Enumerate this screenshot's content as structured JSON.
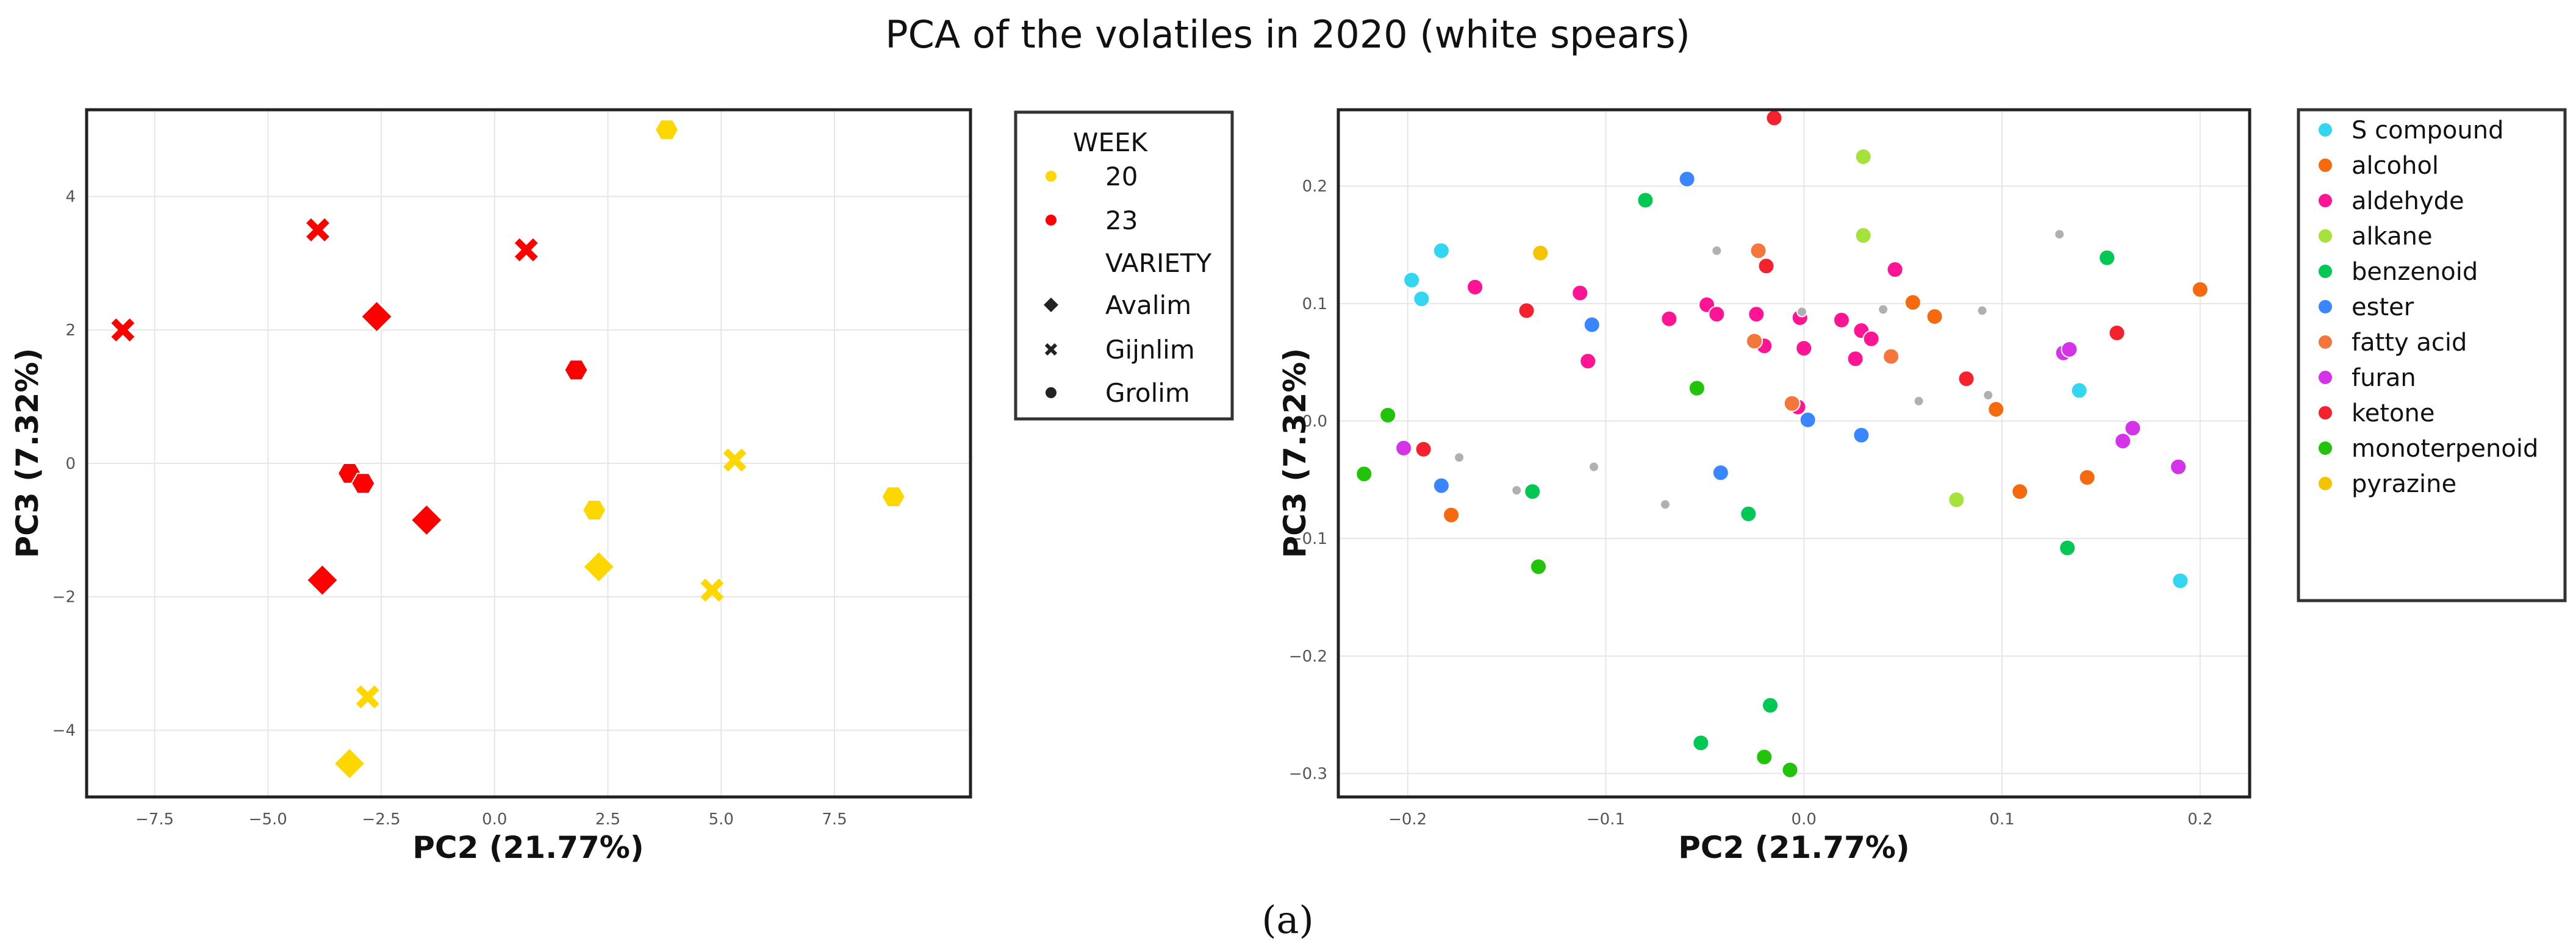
{
  "figure": {
    "title": "PCA of the volatiles in 2020 (white spears)",
    "caption": "(a)"
  },
  "colors": {
    "week_20": "#FFD700",
    "week_23": "#FF0000",
    "categories": {
      "S compound": "#32D6F0",
      "alcohol": "#F56A0F",
      "aldehyde": "#FF1493",
      "alkane": "#A6E23C",
      "benzenoid": "#00C853",
      "ester": "#3A86FF",
      "fatty acid": "#F5763B",
      "furan": "#D433E8",
      "ketone": "#F5222D",
      "monoterpenoid": "#22C40A",
      "pyrazine": "#F5C400",
      "unlabeled": "#B0B0B0"
    }
  },
  "chart_data": [
    {
      "type": "scatter",
      "name": "samples",
      "xlabel": "PC2 (21.77%)",
      "ylabel": "PC3 (7.32%)",
      "xlim": [
        -9,
        10.5
      ],
      "ylim": [
        -5,
        5.3
      ],
      "xticks": [
        -7.5,
        -5.0,
        -2.5,
        0.0,
        2.5,
        5.0,
        7.5
      ],
      "xtick_labels": [
        "−7.5",
        "−5.0",
        "−2.5",
        "0.0",
        "2.5",
        "5.0",
        "7.5"
      ],
      "yticks": [
        -4,
        -2,
        0,
        2,
        4
      ],
      "ytick_labels": [
        "−4",
        "−2",
        "0",
        "2",
        "4"
      ],
      "legend": {
        "position": "right-outside",
        "hue_title": "WEEK",
        "hue_entries": [
          {
            "label": "20",
            "key": "20"
          },
          {
            "label": "23",
            "key": "23"
          }
        ],
        "style_title": "VARIETY",
        "style_entries": [
          {
            "label": "Avalim",
            "marker": "diamond"
          },
          {
            "label": "Gijnlim",
            "marker": "x"
          },
          {
            "label": "Grolim",
            "marker": "hexagon"
          }
        ]
      },
      "points": [
        {
          "x": 3.8,
          "y": 5.0,
          "week": "20",
          "variety": "Grolim"
        },
        {
          "x": 8.8,
          "y": -0.5,
          "week": "20",
          "variety": "Grolim"
        },
        {
          "x": 2.2,
          "y": -0.7,
          "week": "20",
          "variety": "Grolim"
        },
        {
          "x": 5.3,
          "y": 0.05,
          "week": "20",
          "variety": "Gijnlim"
        },
        {
          "x": 4.8,
          "y": -1.9,
          "week": "20",
          "variety": "Gijnlim"
        },
        {
          "x": -2.8,
          "y": -3.5,
          "week": "20",
          "variety": "Gijnlim"
        },
        {
          "x": 2.3,
          "y": -1.55,
          "week": "20",
          "variety": "Avalim"
        },
        {
          "x": -3.2,
          "y": -4.5,
          "week": "20",
          "variety": "Avalim"
        },
        {
          "x": -8.2,
          "y": 2.0,
          "week": "23",
          "variety": "Gijnlim"
        },
        {
          "x": -3.9,
          "y": 3.5,
          "week": "23",
          "variety": "Gijnlim"
        },
        {
          "x": 0.7,
          "y": 3.2,
          "week": "23",
          "variety": "Gijnlim"
        },
        {
          "x": -2.6,
          "y": 2.2,
          "week": "23",
          "variety": "Avalim"
        },
        {
          "x": -1.5,
          "y": -0.85,
          "week": "23",
          "variety": "Avalim"
        },
        {
          "x": -3.8,
          "y": -1.75,
          "week": "23",
          "variety": "Avalim"
        },
        {
          "x": 1.8,
          "y": 1.4,
          "week": "23",
          "variety": "Grolim"
        },
        {
          "x": -3.2,
          "y": -0.15,
          "week": "23",
          "variety": "Grolim"
        },
        {
          "x": -2.9,
          "y": -0.3,
          "week": "23",
          "variety": "Grolim"
        }
      ]
    },
    {
      "type": "scatter",
      "name": "volatiles",
      "xlabel": "PC2 (21.77%)",
      "ylabel": "PC3 (7.32%)",
      "xlim": [
        -0.235,
        0.225
      ],
      "ylim": [
        -0.32,
        0.265
      ],
      "xticks": [
        -0.2,
        -0.1,
        0.0,
        0.1,
        0.2
      ],
      "xtick_labels": [
        "−0.2",
        "−0.1",
        "0.0",
        "0.1",
        "0.2"
      ],
      "yticks": [
        -0.3,
        -0.2,
        -0.1,
        0.0,
        0.1,
        0.2
      ],
      "ytick_labels": [
        "−0.3",
        "−0.2",
        "−0.1",
        "0.0",
        "0.1",
        "0.2"
      ],
      "legend": {
        "position": "right-outside",
        "entries": [
          "S compound",
          "alcohol",
          "aldehyde",
          "alkane",
          "benzenoid",
          "ester",
          "fatty acid",
          "furan",
          "ketone",
          "monoterpenoid",
          "pyrazine"
        ]
      },
      "points": [
        {
          "x": -0.183,
          "y": 0.145,
          "category": "S compound"
        },
        {
          "x": -0.198,
          "y": 0.12,
          "category": "S compound"
        },
        {
          "x": -0.193,
          "y": 0.104,
          "category": "S compound"
        },
        {
          "x": 0.139,
          "y": 0.026,
          "category": "S compound"
        },
        {
          "x": 0.19,
          "y": -0.136,
          "category": "S compound"
        },
        {
          "x": 0.2,
          "y": 0.112,
          "category": "alcohol"
        },
        {
          "x": 0.055,
          "y": 0.101,
          "category": "alcohol"
        },
        {
          "x": 0.066,
          "y": 0.089,
          "category": "alcohol"
        },
        {
          "x": 0.097,
          "y": 0.01,
          "category": "alcohol"
        },
        {
          "x": 0.109,
          "y": -0.06,
          "category": "alcohol"
        },
        {
          "x": 0.143,
          "y": -0.048,
          "category": "alcohol"
        },
        {
          "x": -0.178,
          "y": -0.08,
          "category": "alcohol"
        },
        {
          "x": -0.166,
          "y": 0.114,
          "category": "aldehyde"
        },
        {
          "x": -0.113,
          "y": 0.109,
          "category": "aldehyde"
        },
        {
          "x": -0.109,
          "y": 0.051,
          "category": "aldehyde"
        },
        {
          "x": -0.068,
          "y": 0.087,
          "category": "aldehyde"
        },
        {
          "x": -0.049,
          "y": 0.099,
          "category": "aldehyde"
        },
        {
          "x": -0.044,
          "y": 0.091,
          "category": "aldehyde"
        },
        {
          "x": -0.024,
          "y": 0.091,
          "category": "aldehyde"
        },
        {
          "x": -0.02,
          "y": 0.064,
          "category": "aldehyde"
        },
        {
          "x": 0.0,
          "y": 0.062,
          "category": "aldehyde"
        },
        {
          "x": -0.002,
          "y": 0.088,
          "category": "aldehyde"
        },
        {
          "x": -0.003,
          "y": 0.012,
          "category": "aldehyde"
        },
        {
          "x": 0.019,
          "y": 0.086,
          "category": "aldehyde"
        },
        {
          "x": 0.026,
          "y": 0.053,
          "category": "aldehyde"
        },
        {
          "x": 0.029,
          "y": 0.077,
          "category": "aldehyde"
        },
        {
          "x": 0.034,
          "y": 0.07,
          "category": "aldehyde"
        },
        {
          "x": 0.046,
          "y": 0.129,
          "category": "aldehyde"
        },
        {
          "x": 0.03,
          "y": 0.225,
          "category": "alkane"
        },
        {
          "x": 0.03,
          "y": 0.158,
          "category": "alkane"
        },
        {
          "x": 0.077,
          "y": -0.067,
          "category": "alkane"
        },
        {
          "x": -0.08,
          "y": 0.188,
          "category": "benzenoid"
        },
        {
          "x": -0.137,
          "y": -0.06,
          "category": "benzenoid"
        },
        {
          "x": -0.028,
          "y": -0.079,
          "category": "benzenoid"
        },
        {
          "x": -0.052,
          "y": -0.274,
          "category": "benzenoid"
        },
        {
          "x": -0.017,
          "y": -0.242,
          "category": "benzenoid"
        },
        {
          "x": 0.153,
          "y": 0.139,
          "category": "benzenoid"
        },
        {
          "x": 0.133,
          "y": -0.108,
          "category": "benzenoid"
        },
        {
          "x": -0.059,
          "y": 0.206,
          "category": "ester"
        },
        {
          "x": -0.107,
          "y": 0.082,
          "category": "ester"
        },
        {
          "x": -0.183,
          "y": -0.055,
          "category": "ester"
        },
        {
          "x": -0.042,
          "y": -0.044,
          "category": "ester"
        },
        {
          "x": 0.002,
          "y": 0.001,
          "category": "ester"
        },
        {
          "x": 0.029,
          "y": -0.012,
          "category": "ester"
        },
        {
          "x": -0.023,
          "y": 0.145,
          "category": "fatty acid"
        },
        {
          "x": -0.025,
          "y": 0.068,
          "category": "fatty acid"
        },
        {
          "x": -0.006,
          "y": 0.015,
          "category": "fatty acid"
        },
        {
          "x": 0.044,
          "y": 0.055,
          "category": "fatty acid"
        },
        {
          "x": -0.202,
          "y": -0.023,
          "category": "furan"
        },
        {
          "x": 0.131,
          "y": 0.058,
          "category": "furan"
        },
        {
          "x": 0.134,
          "y": 0.061,
          "category": "furan"
        },
        {
          "x": 0.161,
          "y": -0.017,
          "category": "furan"
        },
        {
          "x": 0.166,
          "y": -0.006,
          "category": "furan"
        },
        {
          "x": 0.189,
          "y": -0.039,
          "category": "furan"
        },
        {
          "x": -0.015,
          "y": 0.258,
          "category": "ketone"
        },
        {
          "x": -0.019,
          "y": 0.132,
          "category": "ketone"
        },
        {
          "x": -0.14,
          "y": 0.094,
          "category": "ketone"
        },
        {
          "x": -0.192,
          "y": -0.024,
          "category": "ketone"
        },
        {
          "x": 0.082,
          "y": 0.036,
          "category": "ketone"
        },
        {
          "x": 0.158,
          "y": 0.075,
          "category": "ketone"
        },
        {
          "x": -0.21,
          "y": 0.005,
          "category": "monoterpenoid"
        },
        {
          "x": -0.222,
          "y": -0.045,
          "category": "monoterpenoid"
        },
        {
          "x": -0.054,
          "y": 0.028,
          "category": "monoterpenoid"
        },
        {
          "x": -0.134,
          "y": -0.124,
          "category": "monoterpenoid"
        },
        {
          "x": -0.02,
          "y": -0.286,
          "category": "monoterpenoid"
        },
        {
          "x": -0.007,
          "y": -0.297,
          "category": "monoterpenoid"
        },
        {
          "x": -0.133,
          "y": 0.143,
          "category": "pyrazine"
        },
        {
          "x": -0.174,
          "y": -0.031,
          "category": "unlabeled"
        },
        {
          "x": -0.145,
          "y": -0.059,
          "category": "unlabeled"
        },
        {
          "x": -0.106,
          "y": -0.039,
          "category": "unlabeled"
        },
        {
          "x": -0.07,
          "y": -0.071,
          "category": "unlabeled"
        },
        {
          "x": -0.044,
          "y": 0.145,
          "category": "unlabeled"
        },
        {
          "x": -0.001,
          "y": 0.093,
          "category": "unlabeled"
        },
        {
          "x": 0.04,
          "y": 0.095,
          "category": "unlabeled"
        },
        {
          "x": 0.058,
          "y": 0.017,
          "category": "unlabeled"
        },
        {
          "x": 0.09,
          "y": 0.094,
          "category": "unlabeled"
        },
        {
          "x": 0.093,
          "y": 0.022,
          "category": "unlabeled"
        },
        {
          "x": 0.129,
          "y": 0.159,
          "category": "unlabeled"
        }
      ]
    }
  ]
}
